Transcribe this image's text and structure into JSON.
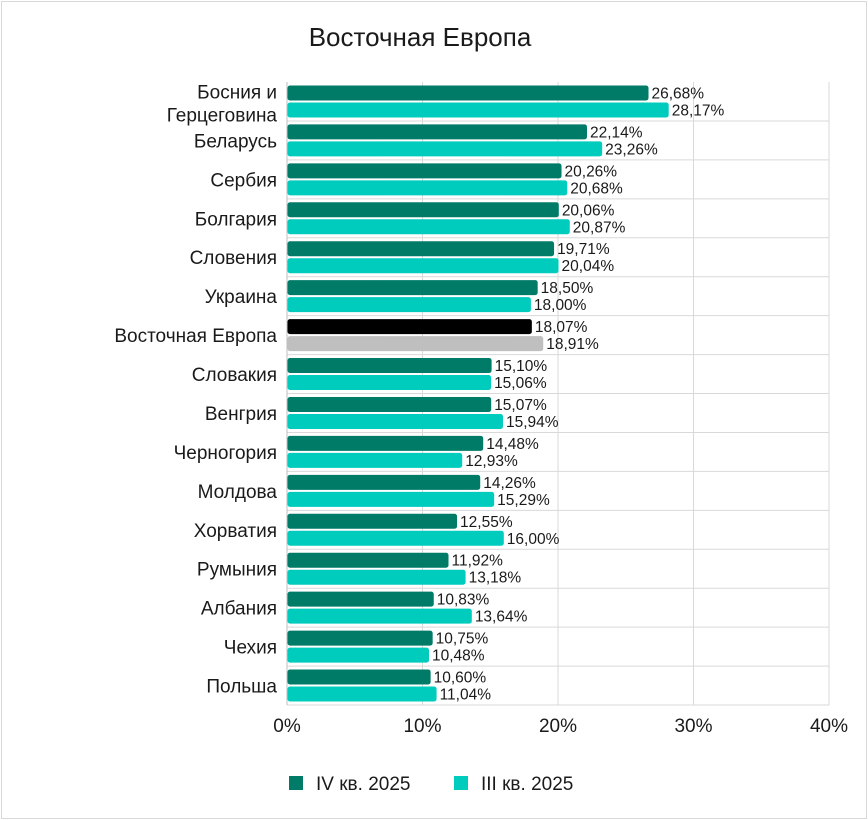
{
  "chart_data": {
    "type": "bar",
    "orientation": "horizontal",
    "title": "Восточная Европа",
    "categories": [
      "Босния и Герцеговина",
      "Беларусь",
      "Сербия",
      "Болгария",
      "Словения",
      "Украина",
      "Восточная Европа",
      "Словакия",
      "Венгрия",
      "Черногория",
      "Молдова",
      "Хорватия",
      "Румыния",
      "Албания",
      "Чехия",
      "Польша"
    ],
    "category_lines": [
      [
        "Босния и",
        "Герцеговина"
      ],
      [
        "Беларусь"
      ],
      [
        "Сербия"
      ],
      [
        "Болгария"
      ],
      [
        "Словения"
      ],
      [
        "Украина"
      ],
      [
        "Восточная Европа"
      ],
      [
        "Словакия"
      ],
      [
        "Венгрия"
      ],
      [
        "Черногория"
      ],
      [
        "Молдова"
      ],
      [
        "Хорватия"
      ],
      [
        "Румыния"
      ],
      [
        "Албания"
      ],
      [
        "Чехия"
      ],
      [
        "Польша"
      ]
    ],
    "series": [
      {
        "name": "IV кв. 2025",
        "color": "#007B68",
        "values": [
          26.68,
          22.14,
          20.26,
          20.06,
          19.71,
          18.5,
          18.07,
          15.1,
          15.07,
          14.48,
          14.26,
          12.55,
          11.92,
          10.83,
          10.75,
          10.6
        ],
        "labels": [
          "26,68%",
          "22,14%",
          "20,26%",
          "20,06%",
          "19,71%",
          "18,50%",
          "18,07%",
          "15,10%",
          "15,07%",
          "14,48%",
          "14,26%",
          "12,55%",
          "11,92%",
          "10,83%",
          "10,75%",
          "10,60%"
        ]
      },
      {
        "name": "III кв. 2025",
        "color": "#00CCBE",
        "values": [
          28.17,
          23.26,
          20.68,
          20.87,
          20.04,
          18.0,
          18.91,
          15.06,
          15.94,
          12.93,
          15.29,
          16.0,
          13.18,
          13.64,
          10.48,
          11.04
        ],
        "labels": [
          "28,17%",
          "23,26%",
          "20,68%",
          "20,87%",
          "20,04%",
          "18,00%",
          "18,91%",
          "15,06%",
          "15,94%",
          "12,93%",
          "15,29%",
          "16,00%",
          "13,18%",
          "13,64%",
          "10,48%",
          "11,04%"
        ]
      }
    ],
    "highlight": {
      "category": "Восточная Европа",
      "colors": [
        "#000000",
        "#BFBFBF"
      ]
    },
    "xlim": [
      0,
      40
    ],
    "xticks": [
      0,
      10,
      20,
      30,
      40
    ],
    "xtick_labels": [
      "0%",
      "10%",
      "20%",
      "30%",
      "40%"
    ],
    "grid": true,
    "legend_position": "bottom"
  }
}
